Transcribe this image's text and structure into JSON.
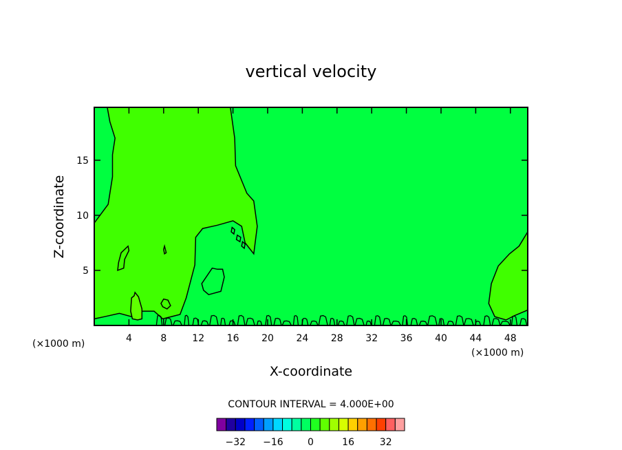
{
  "chart_data": {
    "type": "heatmap",
    "title": "vertical velocity",
    "xlabel": "X-coordinate",
    "ylabel": "Z-coordinate",
    "x_unit": "(×1000 m)",
    "y_unit": "(×1000 m)",
    "xlim": [
      0,
      50
    ],
    "ylim": [
      0,
      19.8
    ],
    "x_ticks": [
      4,
      8,
      12,
      16,
      20,
      24,
      28,
      32,
      36,
      40,
      44,
      48
    ],
    "y_ticks": [
      5,
      10,
      15
    ],
    "contour_interval_label": "CONTOUR INTERVAL = 4.000E+00",
    "colorbar": {
      "levels": 20,
      "tick_values": [
        -32,
        -16,
        0,
        16,
        32
      ],
      "tick_labels": [
        "−32",
        "−16",
        "0",
        "16",
        "32"
      ],
      "colors": [
        "#8000a0",
        "#2000a0",
        "#0000c8",
        "#0020ff",
        "#0060ff",
        "#00a0ff",
        "#00d8ff",
        "#00ffe0",
        "#00ffa0",
        "#00ff60",
        "#20ff20",
        "#60ff00",
        "#a0ff00",
        "#d8ff00",
        "#ffd000",
        "#ffa000",
        "#ff7000",
        "#ff4000",
        "#ff6060",
        "#ffa0a0"
      ]
    },
    "background_color": "#00ff40",
    "regions": [
      {
        "name": "positive-left",
        "color": "#40ff00",
        "points": [
          [
            1.5,
            19.8
          ],
          [
            15.7,
            19.8
          ],
          [
            16.2,
            17
          ],
          [
            16.3,
            14.5
          ],
          [
            17.6,
            12
          ],
          [
            18.4,
            11.3
          ],
          [
            18.8,
            9
          ],
          [
            18.4,
            6.5
          ],
          [
            17.4,
            7.5
          ],
          [
            17,
            9
          ],
          [
            16,
            9.5
          ],
          [
            14.2,
            9.1
          ],
          [
            12.5,
            8.8
          ],
          [
            11.7,
            8
          ],
          [
            11.6,
            5.5
          ],
          [
            10.6,
            2.5
          ],
          [
            9.9,
            1
          ],
          [
            7.9,
            0.6
          ],
          [
            6.9,
            1.3
          ],
          [
            5.6,
            1.3
          ],
          [
            4.3,
            0.8
          ],
          [
            2.9,
            1.1
          ],
          [
            1.2,
            0.8
          ],
          [
            0,
            0.6
          ],
          [
            0,
            9.3
          ],
          [
            1.6,
            11
          ],
          [
            2.1,
            13.5
          ],
          [
            2.1,
            15.5
          ],
          [
            2.4,
            17
          ],
          [
            1.8,
            18.5
          ]
        ]
      },
      {
        "name": "positive-right",
        "color": "#40ff00",
        "points": [
          [
            50,
            8.5
          ],
          [
            49,
            7.2
          ],
          [
            47.9,
            6.5
          ],
          [
            46.6,
            5.4
          ],
          [
            45.8,
            3.8
          ],
          [
            45.5,
            2
          ],
          [
            46.2,
            0.8
          ],
          [
            47.5,
            0.5
          ],
          [
            48.5,
            0.9
          ],
          [
            50,
            1.4
          ]
        ]
      },
      {
        "name": "strong-updraft",
        "color": "#60ff00",
        "points": [
          [
            4.3,
            2.5
          ],
          [
            4.6,
            2.7
          ],
          [
            4.7,
            3
          ],
          [
            5.1,
            2.6
          ],
          [
            5.5,
            1.5
          ],
          [
            5.5,
            0.6
          ],
          [
            5,
            0.5
          ],
          [
            4.4,
            0.6
          ],
          [
            4.2,
            1.3
          ]
        ]
      }
    ],
    "contour_islands": [
      [
        [
          3.1,
          6.6
        ],
        [
          3.9,
          7.2
        ],
        [
          4,
          6.8
        ],
        [
          3.5,
          6
        ],
        [
          3.4,
          5.2
        ],
        [
          2.7,
          5
        ],
        [
          2.8,
          5.7
        ]
      ],
      [
        [
          12.4,
          3.8
        ],
        [
          13.6,
          5.2
        ],
        [
          14.2,
          5.1
        ],
        [
          14.8,
          5.1
        ],
        [
          15,
          4.4
        ],
        [
          14.6,
          3.1
        ],
        [
          13.2,
          2.8
        ],
        [
          12.6,
          3.2
        ]
      ],
      [
        [
          8,
          2.4
        ],
        [
          8.5,
          2.3
        ],
        [
          8.8,
          1.8
        ],
        [
          8.4,
          1.5
        ],
        [
          7.9,
          1.7
        ],
        [
          7.7,
          2
        ]
      ],
      [
        [
          8.1,
          7.2
        ],
        [
          8.3,
          6.6
        ],
        [
          8.1,
          6.5
        ],
        [
          8,
          6.9
        ]
      ],
      [
        [
          15.9,
          8.9
        ],
        [
          16.2,
          8.7
        ],
        [
          16.1,
          8.3
        ],
        [
          15.8,
          8.5
        ]
      ],
      [
        [
          16.5,
          8.2
        ],
        [
          16.9,
          8
        ],
        [
          16.8,
          7.6
        ],
        [
          16.4,
          7.8
        ]
      ],
      [
        [
          17.1,
          7.6
        ],
        [
          17.4,
          7.4
        ],
        [
          17.3,
          7
        ],
        [
          17,
          7.2
        ]
      ]
    ]
  }
}
